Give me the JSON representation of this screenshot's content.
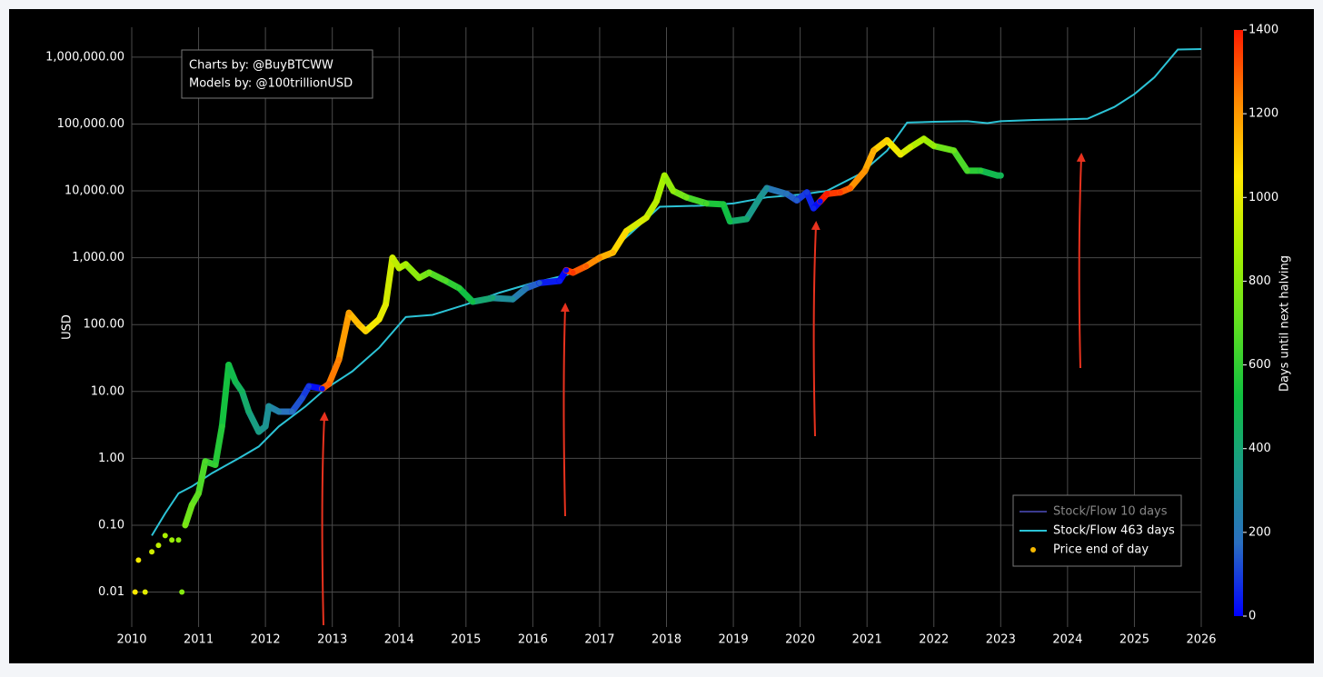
{
  "chart_data": {
    "type": "scatter",
    "log_y": true,
    "grid": true,
    "legend_corner": "lower right",
    "ylabel": "USD",
    "annotations": [
      "Charts by: @BuyBTCWW",
      "Models by: @100trillionUSD"
    ],
    "xlim": [
      2010,
      2026
    ],
    "xticks": [
      2010,
      2011,
      2012,
      2013,
      2014,
      2015,
      2016,
      2017,
      2018,
      2019,
      2020,
      2021,
      2022,
      2023,
      2024,
      2025,
      2026
    ],
    "ylim": [
      0.003,
      2800000
    ],
    "yticks": [
      0.01,
      {
        "value": 0.1,
        "label": "0.10"
      },
      {
        "value": 1,
        "label": "1.00"
      },
      {
        "value": 10,
        "label": "10.00"
      },
      {
        "value": 100,
        "label": "100.00"
      },
      {
        "value": 1000,
        "label": "1,000.00"
      },
      {
        "value": 10000,
        "label": "10,000.00"
      },
      {
        "value": 100000,
        "label": "100,000.00"
      },
      {
        "value": 1000000,
        "label": "1,000,000.00"
      }
    ],
    "colorbar": {
      "label": "Days until next halving",
      "lim": [
        0,
        1400
      ],
      "ticks": [
        0,
        200,
        400,
        600,
        800,
        1000,
        1200,
        1400
      ],
      "colors": [
        "#0000ff",
        "#2a6fc0",
        "#1a9a8a",
        "#10c040",
        "#60e020",
        "#a8f000",
        "#ffe800",
        "#ff8c00",
        "#ff1a00"
      ]
    },
    "series": [
      {
        "name": "Stock/Flow 10 days",
        "color": "#3b3b8f",
        "kind": "line",
        "x": [],
        "values": []
      },
      {
        "name": "Stock/Flow 463 days",
        "color": "#2cc3d6",
        "kind": "line",
        "x": [
          2010.3,
          2010.5,
          2010.7,
          2010.9,
          2011.2,
          2011.6,
          2011.9,
          2012.2,
          2012.6,
          2012.9,
          2013.3,
          2013.7,
          2014.1,
          2014.5,
          2015.0,
          2015.5,
          2016.0,
          2016.5,
          2017.0,
          2017.5,
          2017.9,
          2018.5,
          2019.0,
          2019.5,
          2020.0,
          2020.4,
          2020.9,
          2021.3,
          2021.6,
          2022.0,
          2022.5,
          2022.8,
          2023.0,
          2023.5,
          2024.0,
          2024.3,
          2024.7,
          2025.0,
          2025.3,
          2025.65,
          2026.0
        ],
        "values": [
          0.07,
          0.15,
          0.3,
          0.38,
          0.6,
          1.0,
          1.5,
          3,
          6,
          11,
          20,
          45,
          130,
          140,
          200,
          300,
          420,
          550,
          900,
          2500,
          5800,
          6000,
          6500,
          8000,
          8800,
          10000,
          18000,
          40000,
          105000,
          108000,
          110000,
          103000,
          110000,
          115000,
          118000,
          120000,
          180000,
          280000,
          500000,
          1300000,
          1320000
        ]
      },
      {
        "name": "Price end of day",
        "color": "#f5b800",
        "kind": "points",
        "x": [
          2010.05,
          2010.1,
          2010.2,
          2010.3,
          2010.4,
          2010.5,
          2010.6,
          2010.7,
          2010.75,
          2010.8,
          2010.9,
          2011.0,
          2011.1,
          2011.25,
          2011.35,
          2011.45,
          2011.55,
          2011.65,
          2011.75,
          2011.9,
          2012.0,
          2012.05,
          2012.2,
          2012.4,
          2012.55,
          2012.65,
          2012.85,
          2012.95,
          2013.1,
          2013.25,
          2013.4,
          2013.5,
          2013.7,
          2013.8,
          2013.9,
          2014.0,
          2014.1,
          2014.3,
          2014.45,
          2014.7,
          2014.9,
          2015.1,
          2015.4,
          2015.7,
          2015.9,
          2016.1,
          2016.4,
          2016.5,
          2016.6,
          2016.8,
          2017.0,
          2017.2,
          2017.4,
          2017.7,
          2017.85,
          2017.97,
          2018.1,
          2018.3,
          2018.6,
          2018.85,
          2018.95,
          2019.2,
          2019.4,
          2019.5,
          2019.8,
          2019.95,
          2020.1,
          2020.2,
          2020.3,
          2020.4,
          2020.6,
          2020.75,
          2020.97,
          2021.1,
          2021.3,
          2021.5,
          2021.65,
          2021.85,
          2022.0,
          2022.3,
          2022.5,
          2022.7,
          2022.95,
          2023.0
        ],
        "values": [
          0.01,
          0.03,
          0.01,
          0.04,
          0.05,
          0.07,
          0.06,
          0.06,
          0.01,
          0.1,
          0.2,
          0.3,
          0.9,
          0.8,
          3,
          25,
          14,
          10,
          5,
          2.5,
          3,
          6,
          5,
          5,
          8,
          12,
          11,
          13,
          30,
          150,
          100,
          80,
          120,
          200,
          1000,
          700,
          800,
          500,
          600,
          450,
          350,
          220,
          250,
          240,
          350,
          420,
          450,
          650,
          600,
          750,
          1000,
          1200,
          2500,
          4000,
          7000,
          17000,
          10000,
          8000,
          6500,
          6300,
          3500,
          3800,
          8000,
          11000,
          9000,
          7200,
          9500,
          5500,
          7000,
          9000,
          9500,
          11000,
          20000,
          40000,
          57000,
          35000,
          45000,
          60000,
          47000,
          40000,
          20000,
          20000,
          17000,
          17000
        ],
        "color_values": [
          1045,
          1026,
          990,
          953,
          917,
          880,
          844,
          807,
          789,
          771,
          734,
          698,
          661,
          606,
          570,
          533,
          497,
          460,
          424,
          369,
          332,
          314,
          259,
          186,
          131,
          95,
          22,
          1304,
          1249,
          1194,
          1140,
          1103,
          1030,
          993,
          957,
          920,
          884,
          811,
          756,
          665,
          592,
          519,
          409,
          300,
          226,
          153,
          44,
          7,
          1359,
          1300,
          1227,
          1154,
          1081,
          972,
          917,
          873,
          825,
          752,
          643,
          552,
          515,
          424,
          351,
          314,
          205,
          150,
          95,
          58,
          22,
          1424,
          1351,
          1297,
          1216,
          1169,
          1096,
          1023,
          968,
          895,
          840,
          731,
          657,
          584,
          493,
          475
        ]
      }
    ]
  }
}
